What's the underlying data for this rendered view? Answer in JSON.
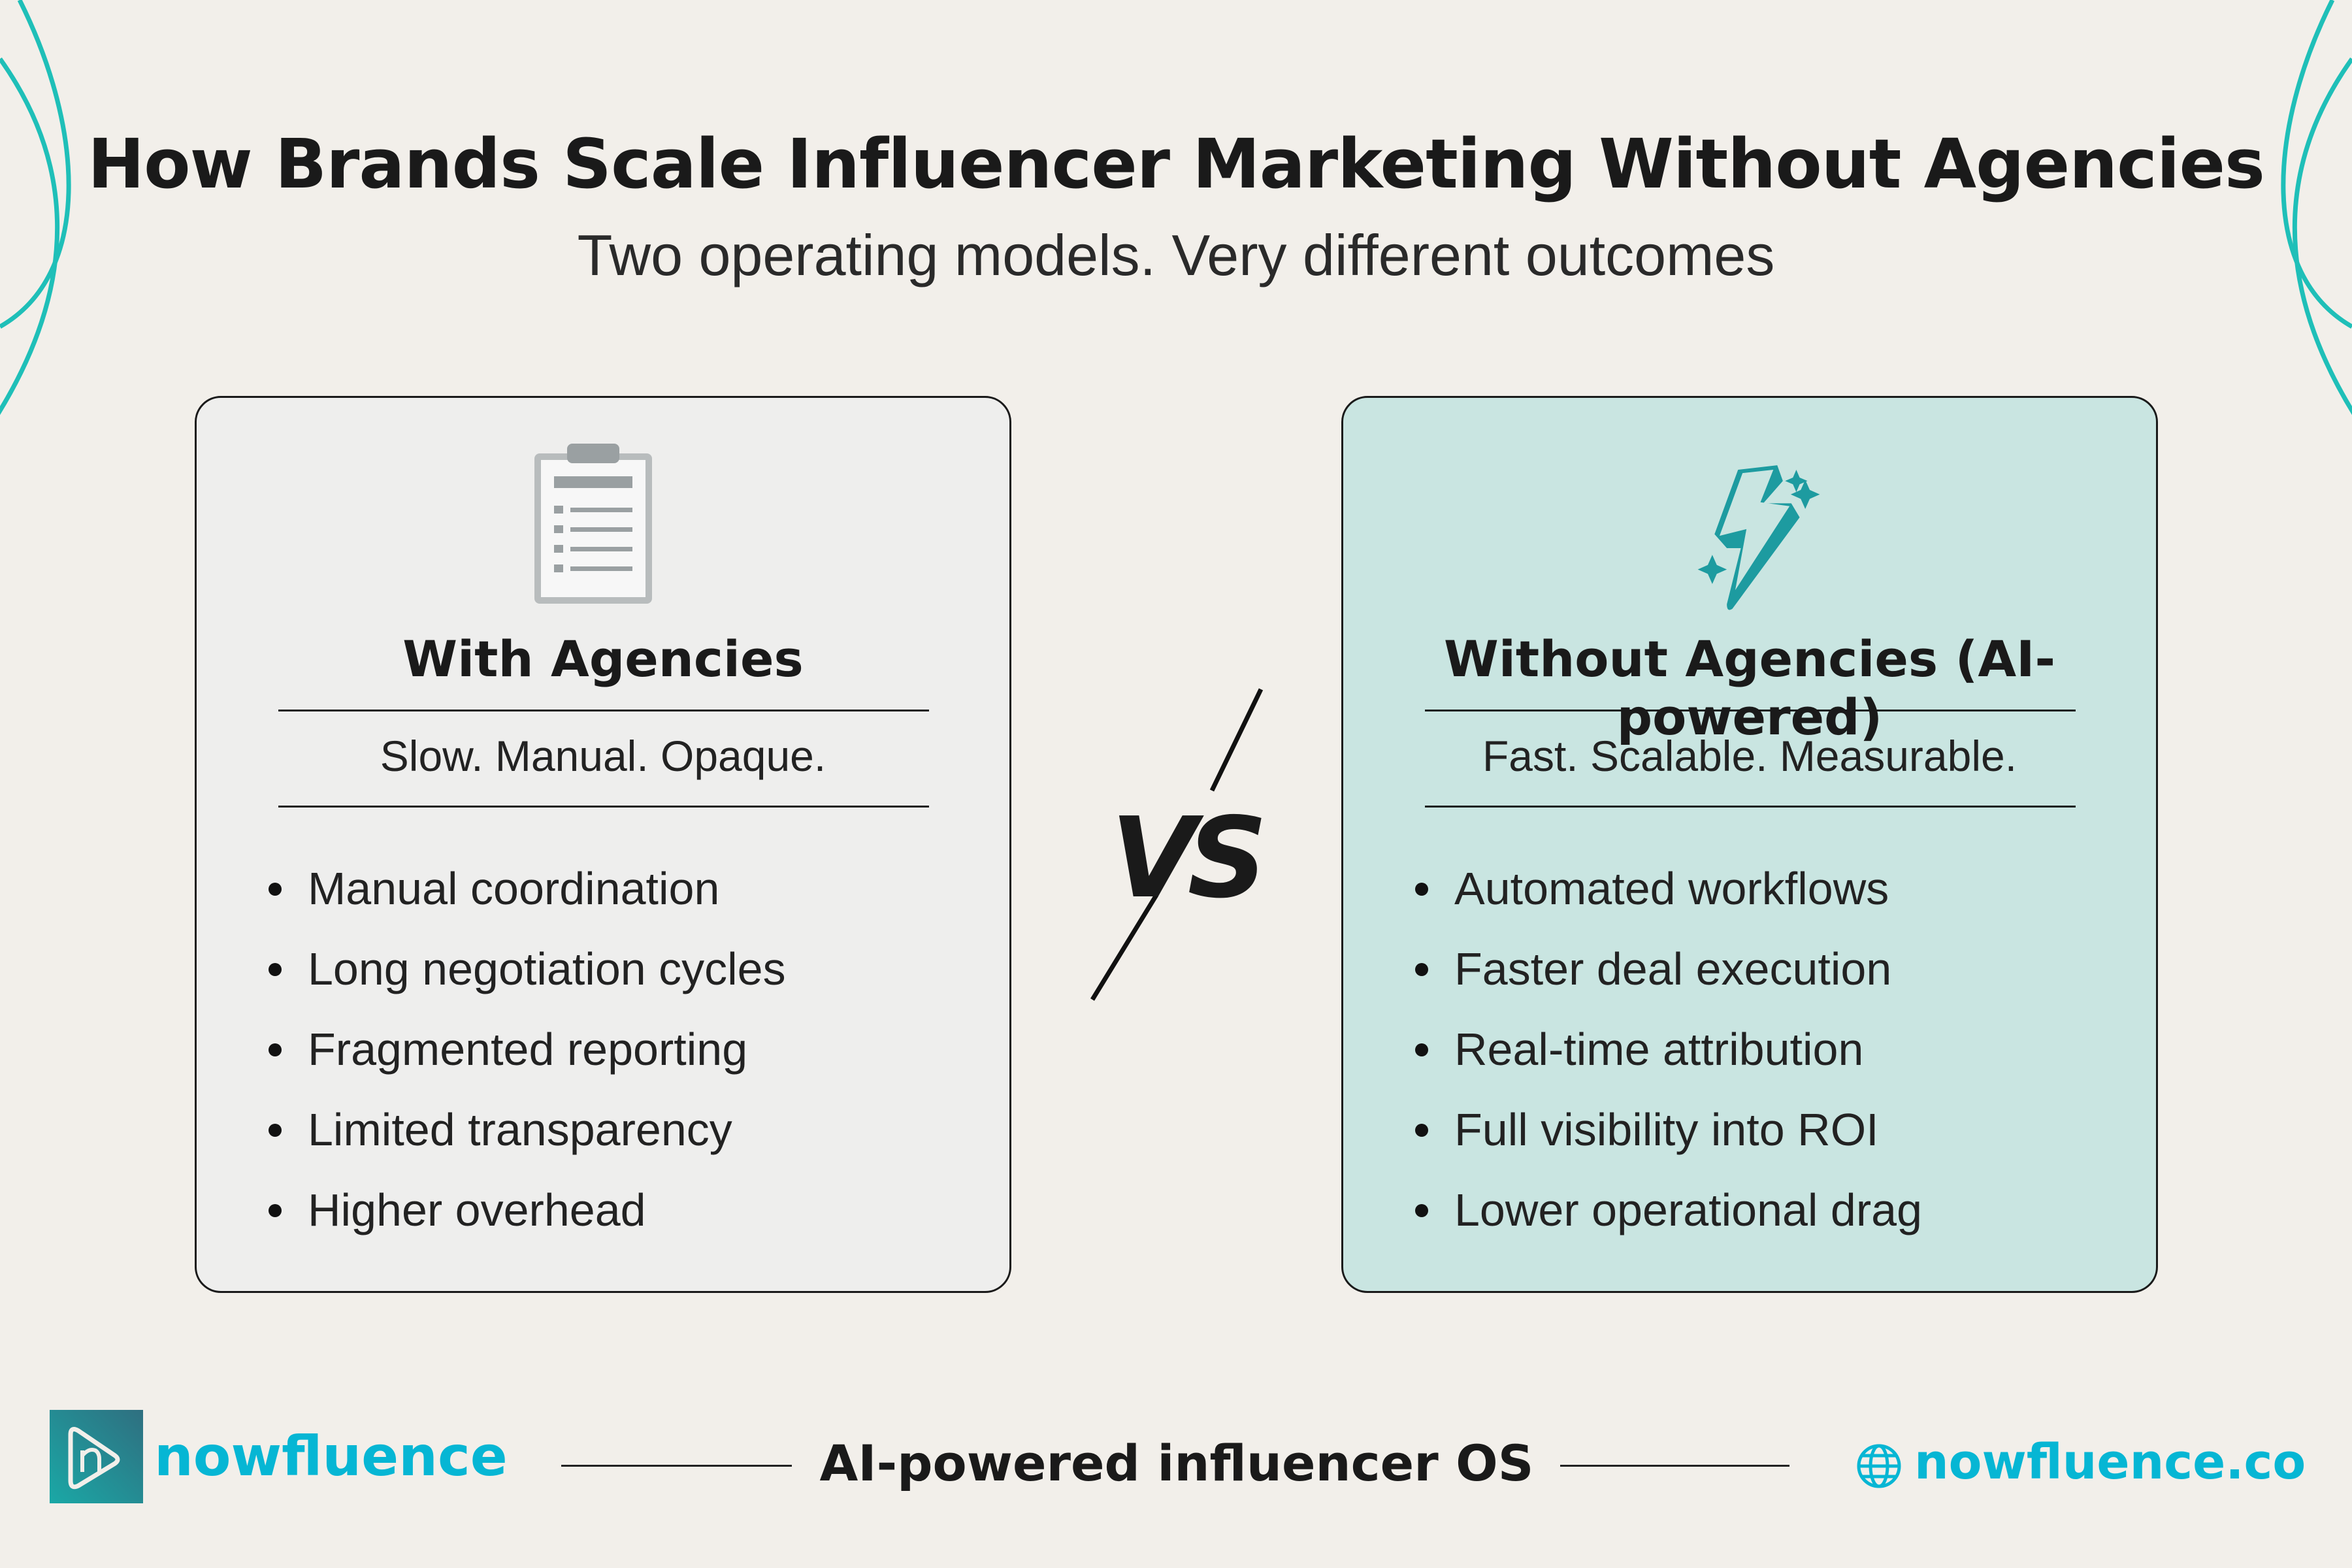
{
  "header": {
    "title": "How Brands Scale Influencer Marketing Without Agencies",
    "subtitle": "Two operating models. Very different outcomes"
  },
  "left": {
    "icon": "clipboard-icon",
    "title": "With Agencies",
    "tagline": "Slow. Manual. Opaque.",
    "items": [
      "Manual coordination",
      "Long negotiation cycles",
      "Fragmented reporting",
      "Limited transparency",
      "Higher overhead"
    ]
  },
  "right": {
    "icon": "lightning-sparkle-icon",
    "title": "Without Agencies (AI-powered)",
    "tagline": "Fast. Scalable. Measurable.",
    "items": [
      "Automated workflows",
      "Faster deal execution",
      "Real-time attribution",
      "Full visibility into ROI",
      "Lower operational drag"
    ]
  },
  "vs": "VS",
  "footer": {
    "brand": "nowfluence",
    "tagline": "AI-powered influencer OS",
    "website": "nowfluence.co"
  },
  "colors": {
    "background": "#f2efea",
    "accent": "#1d9ba0",
    "brand": "#06b6d4",
    "right_card": "#c9e5e1",
    "left_card": "#eeeeed"
  }
}
